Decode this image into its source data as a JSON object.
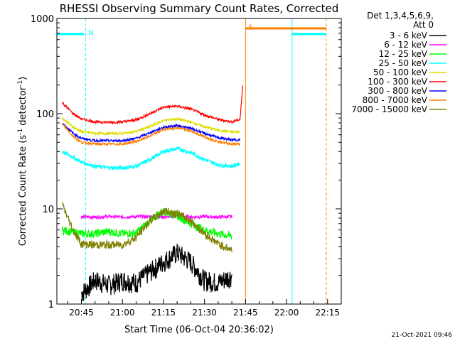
{
  "chart_data": {
    "type": "line",
    "title": "RHESSI Observing Summary Count Rates, Corrected",
    "xlabel": "Start Time (06-Oct-04 20:36:02)",
    "ylabel": "Corrected Count Rate (s",
    "ylabel_sup1": "-1",
    "ylabel_mid": " detector",
    "ylabel_sup2": "-1",
    "ylabel_end": ")",
    "yscale": "log",
    "ylim": [
      1,
      1000
    ],
    "xlim": [
      "20:36:02",
      "22:20:00"
    ],
    "x_ticks": [
      "20:45",
      "21:00",
      "21:15",
      "21:30",
      "21:45",
      "22:00",
      "22:15"
    ],
    "y_ticks": [
      "1",
      "10",
      "100",
      "1000"
    ],
    "legend_title": "Det 1,3,4,5,6,9,",
    "legend_subtitle": "Att 0",
    "legend_position": "top-right",
    "timestamp": "21-Oct-2021 09:46",
    "series": [
      {
        "name": "3 - 6 keV",
        "color": "#000000",
        "x": [
          "20:45",
          "20:50",
          "20:55",
          "21:00",
          "21:05",
          "21:10",
          "21:15",
          "21:20",
          "21:25",
          "21:30",
          "21:35",
          "21:40"
        ],
        "values": [
          1.3,
          1.8,
          1.6,
          1.8,
          1.7,
          2.2,
          2.8,
          3.5,
          2.8,
          1.8,
          1.7,
          2.0
        ]
      },
      {
        "name": "6 - 12 keV",
        "color": "#ff00ff",
        "x": [
          "20:45",
          "20:50",
          "20:55",
          "21:00",
          "21:05",
          "21:10",
          "21:15",
          "21:20",
          "21:25",
          "21:30",
          "21:35",
          "21:40"
        ],
        "values": [
          8.2,
          8.2,
          8.3,
          8.2,
          8.3,
          8.3,
          8.2,
          8.3,
          8.2,
          8.3,
          8.2,
          8.3
        ]
      },
      {
        "name": "12 - 25 keV",
        "color": "#00ff00",
        "x": [
          "20:38",
          "20:45",
          "20:50",
          "20:55",
          "21:00",
          "21:05",
          "21:10",
          "21:15",
          "21:20",
          "21:25",
          "21:30",
          "21:35",
          "21:40"
        ],
        "values": [
          6.0,
          5.5,
          5.5,
          5.8,
          5.5,
          5.6,
          7.5,
          9.5,
          8.5,
          7.0,
          6.0,
          5.5,
          5.2
        ]
      },
      {
        "name": "25 - 50 keV",
        "color": "#00ffff",
        "x": [
          "20:38",
          "20:42",
          "20:45",
          "20:50",
          "20:55",
          "21:00",
          "21:05",
          "21:10",
          "21:15",
          "21:20",
          "21:25",
          "21:30",
          "21:35",
          "21:40",
          "21:43"
        ],
        "values": [
          40,
          35,
          31,
          28,
          27,
          27,
          28,
          33,
          40,
          43,
          39,
          33,
          29,
          28,
          30
        ]
      },
      {
        "name": "50 - 100 keV",
        "color": "#dddd00",
        "x": [
          "20:38",
          "20:42",
          "20:45",
          "20:50",
          "20:55",
          "21:00",
          "21:05",
          "21:10",
          "21:15",
          "21:20",
          "21:25",
          "21:30",
          "21:35",
          "21:40",
          "21:43"
        ],
        "values": [
          90,
          72,
          65,
          62,
          62,
          62,
          65,
          73,
          85,
          88,
          82,
          73,
          67,
          64,
          65
        ]
      },
      {
        "name": "100 - 300 keV",
        "color": "#ff0000",
        "x": [
          "20:38",
          "20:42",
          "20:45",
          "20:50",
          "20:55",
          "21:00",
          "21:05",
          "21:10",
          "21:15",
          "21:20",
          "21:25",
          "21:30",
          "21:35",
          "21:40",
          "21:43",
          "21:44"
        ],
        "values": [
          130,
          100,
          88,
          82,
          81,
          82,
          86,
          100,
          117,
          120,
          112,
          97,
          87,
          82,
          87,
          200
        ]
      },
      {
        "name": "300 - 800 keV",
        "color": "#0000ff",
        "x": [
          "20:38",
          "20:42",
          "20:45",
          "20:50",
          "20:55",
          "21:00",
          "21:05",
          "21:10",
          "21:15",
          "21:20",
          "21:25",
          "21:30",
          "21:35",
          "21:40",
          "21:43"
        ],
        "values": [
          80,
          62,
          55,
          52,
          52,
          52,
          55,
          63,
          72,
          75,
          70,
          62,
          56,
          53,
          53
        ]
      },
      {
        "name": "800 - 7000 keV",
        "color": "#ff8000",
        "x": [
          "20:38",
          "20:42",
          "20:45",
          "20:50",
          "20:55",
          "21:00",
          "21:05",
          "21:10",
          "21:15",
          "21:20",
          "21:25",
          "21:30",
          "21:35",
          "21:40",
          "21:43"
        ],
        "values": [
          78,
          58,
          50,
          48,
          48,
          48,
          51,
          58,
          68,
          71,
          66,
          57,
          51,
          48,
          48
        ]
      },
      {
        "name": "7000 - 15000 keV",
        "color": "#808000",
        "x": [
          "20:38",
          "20:42",
          "20:45",
          "20:50",
          "20:55",
          "21:00",
          "21:05",
          "21:10",
          "21:15",
          "21:20",
          "21:25",
          "21:30",
          "21:35",
          "21:40"
        ],
        "values": [
          11,
          6.0,
          4.3,
          4.2,
          4.2,
          4.2,
          5.0,
          7.5,
          9.5,
          9.0,
          7.5,
          5.5,
          4.3,
          3.7
        ]
      }
    ],
    "annotations": [
      {
        "label": "N",
        "color": "#00ffff",
        "start": "20:46:30",
        "level": 680
      },
      {
        "label": "S",
        "color": "#ff8000",
        "start": "21:45:00",
        "level": 780
      }
    ],
    "orbit_bars": [
      {
        "color": "#00ffff",
        "from": "20:36:02",
        "to": "20:46:00",
        "level": 680
      },
      {
        "color": "#ff8000",
        "from": "21:45:00",
        "to": "22:14:30",
        "level": 780
      },
      {
        "color": "#00ffff",
        "from": "22:02:00",
        "to": "22:14:30",
        "level": 680
      }
    ],
    "vlines": [
      {
        "color": "#00ffff",
        "at": "20:36:02",
        "style": "solid"
      },
      {
        "color": "#00ffff",
        "at": "20:46:30",
        "style": "dashed"
      },
      {
        "color": "#ff8000",
        "at": "21:45:00",
        "style": "solid"
      },
      {
        "color": "#00ffff",
        "at": "22:02:00",
        "style": "solid"
      },
      {
        "color": "#ff8000",
        "at": "22:14:30",
        "style": "dashed"
      }
    ]
  }
}
